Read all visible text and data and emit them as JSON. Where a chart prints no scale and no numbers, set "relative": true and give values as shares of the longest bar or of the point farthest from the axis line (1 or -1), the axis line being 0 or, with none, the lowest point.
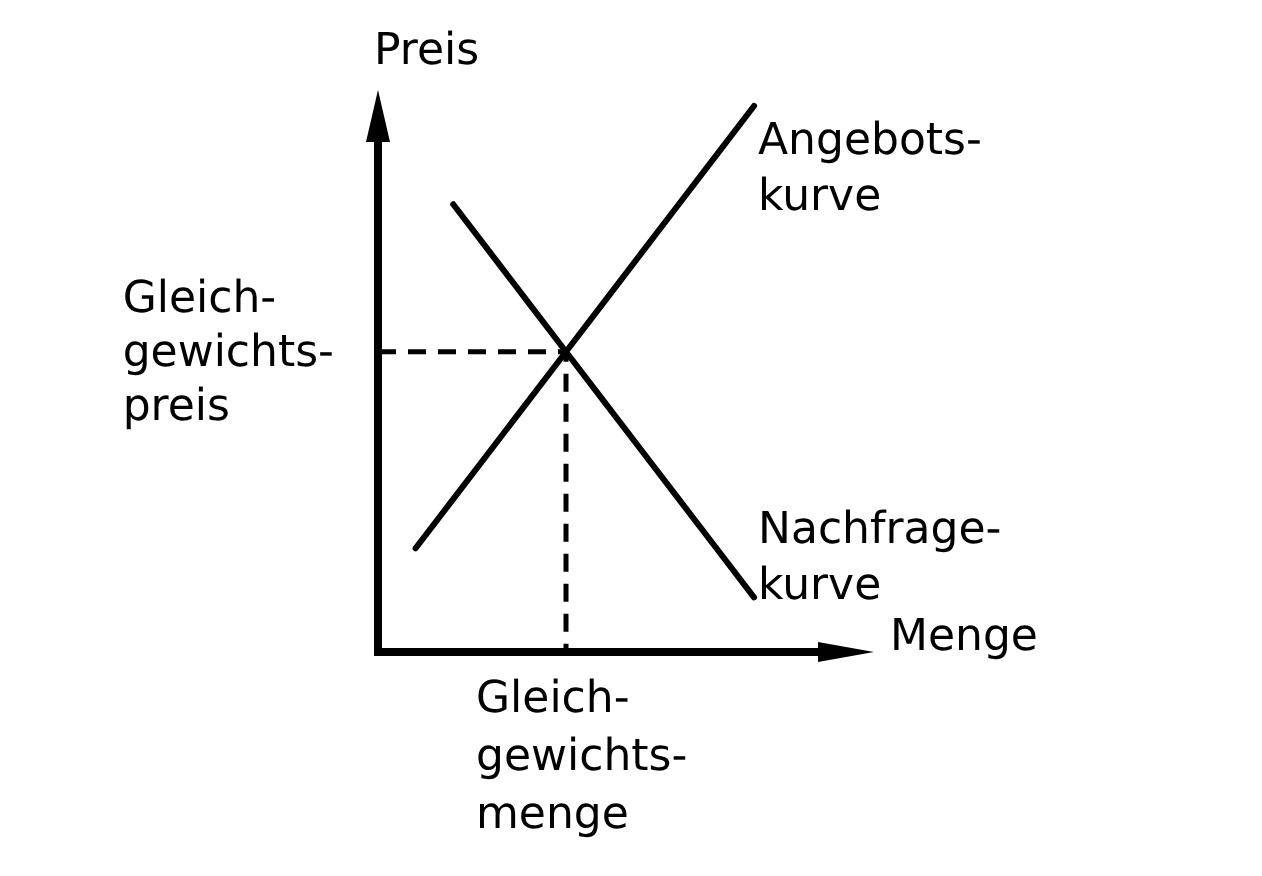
{
  "chart_data": {
    "type": "line",
    "relative": true,
    "xlabel": "Menge",
    "ylabel": "Preis",
    "tick_labels": false,
    "marker": "none",
    "categories": [
      null,
      null,
      null,
      null,
      null,
      null,
      null,
      null,
      null,
      null,
      null
    ],
    "series": [
      {
        "name": "Angebots-\nkurve",
        "color": "#000000",
        "values": [
          null,
          0.19,
          0.28,
          0.37,
          0.46,
          0.55,
          0.64,
          0.73,
          0.82,
          0.91,
          1
        ]
      },
      {
        "name": "Nachfrage-\nkurve",
        "color": "#000000",
        "values": [
          null,
          null,
          0.82,
          0.73,
          0.64,
          0.55,
          0.46,
          0.37,
          0.28,
          0.19,
          0.1
        ]
      },
      {
        "type": "step",
        "color": "#000000",
        "values": [
          0.55,
          0.55,
          0.55,
          0.55,
          0.55,
          0,
          null,
          null,
          null,
          null,
          null
        ],
        "line_style": "dashed"
      }
    ],
    "annotations": [
      "Gleich-\ngewichts-\npreis",
      "Gleich-\ngewichts-\nmenge"
    ]
  }
}
